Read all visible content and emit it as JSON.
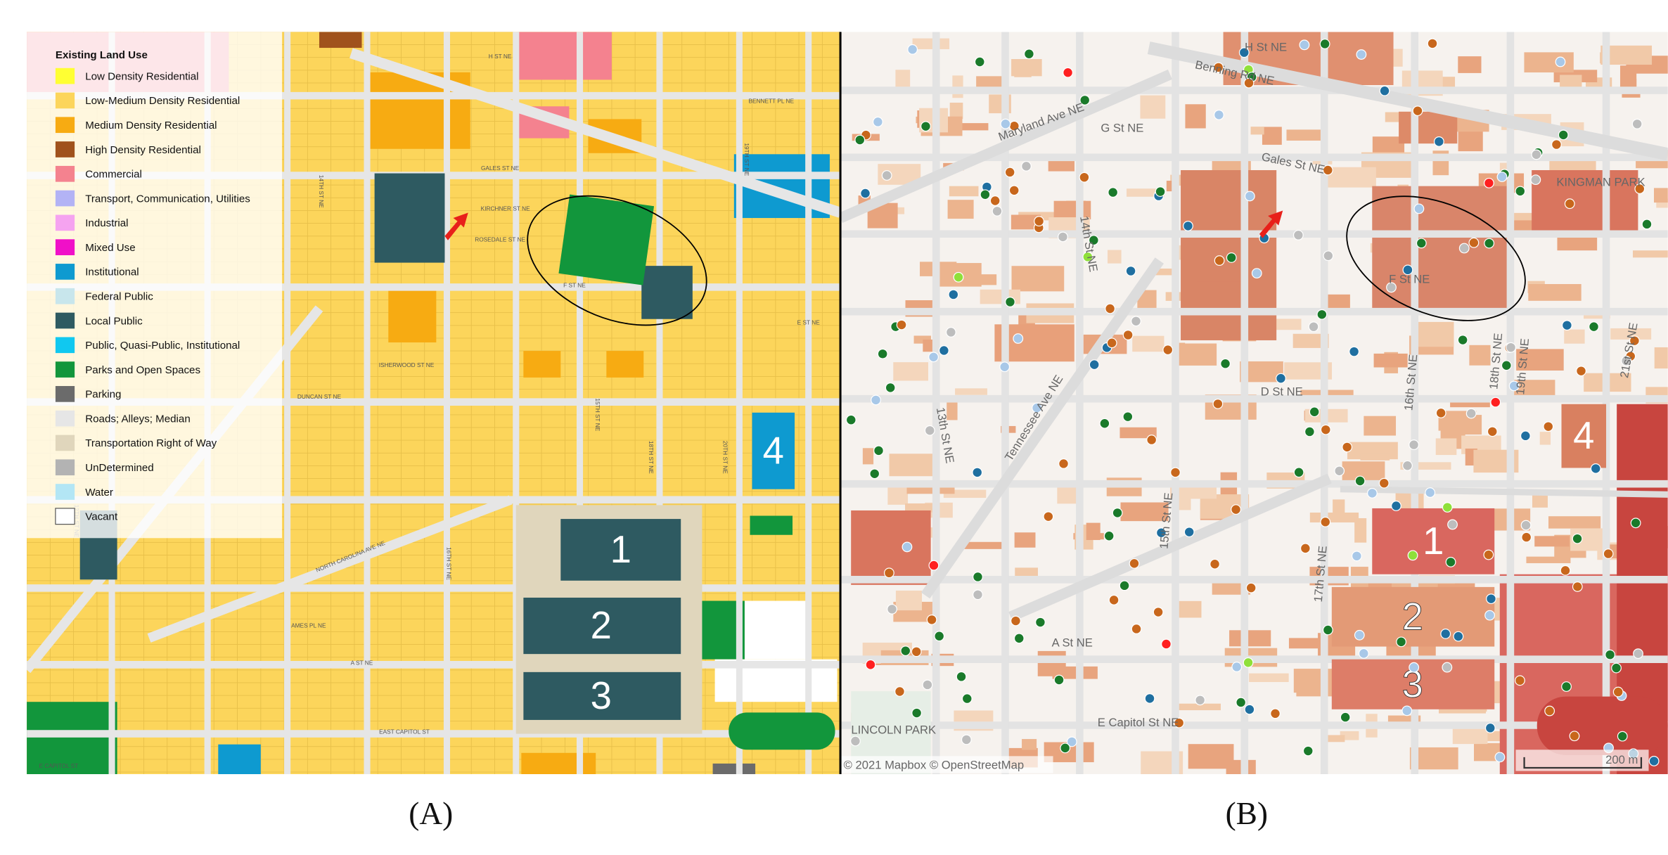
{
  "legend": {
    "title": "Existing Land Use",
    "items": [
      {
        "label": "Low Density Residential",
        "color": "#ffff33"
      },
      {
        "label": "Low-Medium Density Residential",
        "color": "#fcd55b"
      },
      {
        "label": "Medium Density Residential",
        "color": "#f7ab12"
      },
      {
        "label": "High Density Residential",
        "color": "#a0521c"
      },
      {
        "label": "Commercial",
        "color": "#f4828f"
      },
      {
        "label": "Transport, Communication, Utilities",
        "color": "#b3b3f5"
      },
      {
        "label": "Industrial",
        "color": "#f5a3f0"
      },
      {
        "label": "Mixed Use",
        "color": "#f010c8"
      },
      {
        "label": "Institutional",
        "color": "#0e9ad0"
      },
      {
        "label": "Federal Public",
        "color": "#c8e6ec"
      },
      {
        "label": "Local Public",
        "color": "#2e5a61"
      },
      {
        "label": "Public, Quasi-Public, Institutional",
        "color": "#10c8f0"
      },
      {
        "label": "Parks and Open Spaces",
        "color": "#12963c"
      },
      {
        "label": "Parking",
        "color": "#6b6b6b"
      },
      {
        "label": "Roads; Alleys; Median",
        "color": "#e6e6e6"
      },
      {
        "label": "Transportation Right of Way",
        "color": "#e0d6bc"
      },
      {
        "label": "UnDetermined",
        "color": "#b3b3b3"
      },
      {
        "label": "Water",
        "color": "#b3e6f5"
      },
      {
        "label": "Vacant",
        "color": "#ffffff"
      }
    ]
  },
  "panel_a": {
    "streets": [
      "H ST NE",
      "BENNETT PL NE",
      "GALES ST NE",
      "KIRCHNER ST NE",
      "ROSEDALE ST NE",
      "F ST NE",
      "E ST NE",
      "ISHERWOOD ST NE",
      "DUNCAN ST NE",
      "NORTH CAROLINA AVE NE",
      "AMES PL NE",
      "A ST NE",
      "EAST CAPITOL ST",
      "15TH ST NE",
      "16TH ST NE",
      "18TH ST NE",
      "19TH ST NE",
      "20TH ST NE",
      "12TH ST NE",
      "14TH ST NE",
      "E CAPITOL ST"
    ],
    "blocks": [
      "1",
      "2",
      "3",
      "4"
    ],
    "caption": "(A)"
  },
  "panel_b": {
    "streets": [
      "H St NE",
      "Benning Rd NE",
      "Maryland Ave NE",
      "G St NE",
      "Gales St NE",
      "F St NE",
      "14th St NE",
      "Tennessee Ave NE",
      "13th St NE",
      "D St NE",
      "15th St NE",
      "16th St NE",
      "17th St NE",
      "18th St NE",
      "19th St NE",
      "21st St NE",
      "A St NE",
      "E Capitol St NE",
      "KINGMAN PARK",
      "LINCOLN PARK"
    ],
    "blocks": [
      "1",
      "2",
      "3",
      "4"
    ],
    "attribution": "© 2021 Mapbox © OpenStreetMap",
    "scale": "200 m",
    "caption": "(B)"
  }
}
